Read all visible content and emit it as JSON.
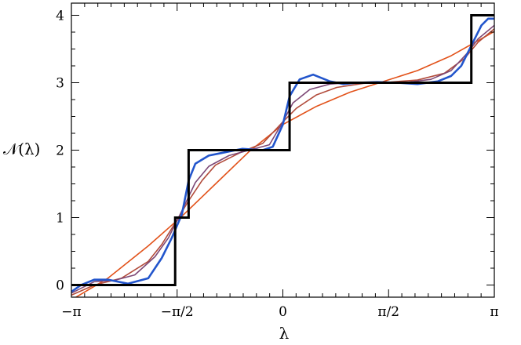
{
  "chart_data": {
    "type": "line",
    "xlabel": "λ",
    "ylabel": "𝒩(λ)",
    "xlim": [
      -3.14159,
      3.14159
    ],
    "ylim": [
      -0.18,
      4.18
    ],
    "x_ticks": [
      {
        "value": -3.14159,
        "label": "−π"
      },
      {
        "value": -1.5708,
        "label": "−π/2"
      },
      {
        "value": 0,
        "label": "0"
      },
      {
        "value": 1.5708,
        "label": "π/2"
      },
      {
        "value": 3.14159,
        "label": "π"
      }
    ],
    "y_ticks": [
      {
        "value": 0,
        "label": "0"
      },
      {
        "value": 1,
        "label": "1"
      },
      {
        "value": 2,
        "label": "2"
      },
      {
        "value": 3,
        "label": "3"
      },
      {
        "value": 4,
        "label": "4"
      }
    ],
    "x_minor_step": 0.19635,
    "y_minor_step": 0.25,
    "grid": false,
    "legend": false,
    "step_series": {
      "color": "#000000",
      "x": [
        -3.14159,
        -1.6,
        -1.6,
        -1.4,
        -1.4,
        0.1,
        0.1,
        2.8,
        2.8,
        3.14159
      ],
      "y": [
        0,
        0,
        1,
        1,
        2,
        2,
        3,
        3,
        4,
        4
      ]
    },
    "series": [
      {
        "color": "#e2521a",
        "x": [
          -3.14159,
          -2.6,
          -2.0,
          -1.5,
          -1.0,
          -0.5,
          0.0,
          0.5,
          1.0,
          1.5,
          2.0,
          2.5,
          3.0,
          3.14159
        ],
        "y": [
          -0.22,
          0.1,
          0.58,
          1.02,
          1.5,
          1.98,
          2.38,
          2.65,
          2.86,
          3.02,
          3.18,
          3.4,
          3.68,
          3.76
        ]
      },
      {
        "color": "#b24c3c",
        "x": [
          -3.14159,
          -2.8,
          -2.4,
          -2.0,
          -1.8,
          -1.6,
          -1.4,
          -1.2,
          -1.0,
          -0.6,
          -0.3,
          0.0,
          0.2,
          0.5,
          0.8,
          1.2,
          1.6,
          2.0,
          2.4,
          2.7,
          2.9,
          3.14159
        ],
        "y": [
          -0.15,
          0.0,
          0.1,
          0.35,
          0.6,
          0.92,
          1.25,
          1.55,
          1.78,
          1.98,
          2.1,
          2.42,
          2.62,
          2.82,
          2.93,
          2.99,
          3.01,
          3.04,
          3.14,
          3.36,
          3.6,
          3.8
        ]
      },
      {
        "color": "#7d4876",
        "x": [
          -3.14159,
          -2.8,
          -2.5,
          -2.2,
          -1.9,
          -1.7,
          -1.5,
          -1.3,
          -1.1,
          -0.8,
          -0.5,
          -0.2,
          0.0,
          0.15,
          0.4,
          0.7,
          1.0,
          1.4,
          1.8,
          2.2,
          2.5,
          2.75,
          2.9,
          3.14159
        ],
        "y": [
          -0.12,
          0.05,
          0.07,
          0.15,
          0.42,
          0.7,
          1.1,
          1.52,
          1.76,
          1.92,
          2.0,
          2.08,
          2.42,
          2.7,
          2.9,
          2.98,
          3.0,
          3.01,
          3.0,
          3.05,
          3.18,
          3.45,
          3.65,
          3.85
        ]
      },
      {
        "color": "#2255cc",
        "x": [
          -3.14159,
          -3.0,
          -2.8,
          -2.6,
          -2.3,
          -2.0,
          -1.8,
          -1.65,
          -1.5,
          -1.4,
          -1.3,
          -1.1,
          -0.9,
          -0.6,
          -0.3,
          -0.15,
          0.0,
          0.1,
          0.25,
          0.45,
          0.7,
          0.9,
          1.1,
          1.4,
          1.7,
          2.0,
          2.3,
          2.5,
          2.65,
          2.8,
          2.95,
          3.05,
          3.14159
        ],
        "y": [
          -0.1,
          0.0,
          0.08,
          0.08,
          0.02,
          0.1,
          0.4,
          0.7,
          1.05,
          1.55,
          1.8,
          1.92,
          1.96,
          2.02,
          2.0,
          2.05,
          2.38,
          2.8,
          3.05,
          3.12,
          3.02,
          2.98,
          3.0,
          3.01,
          3.0,
          2.98,
          3.02,
          3.1,
          3.25,
          3.55,
          3.85,
          3.95,
          3.95
        ]
      }
    ]
  }
}
